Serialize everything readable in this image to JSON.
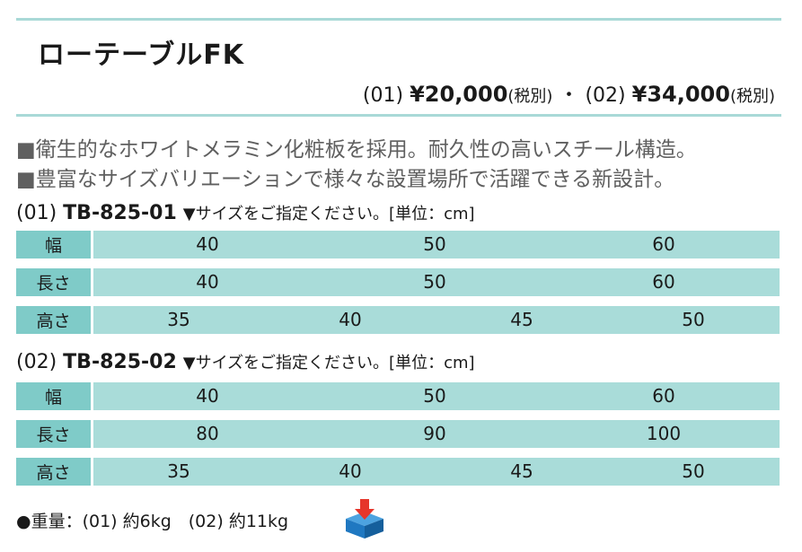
{
  "title": "ローテーブルFK",
  "price": {
    "p1_code": "(01)",
    "p1_amount": "¥20,000",
    "p1_tax": "(税別)",
    "separator": "・",
    "p2_code": "(02)",
    "p2_amount": "¥34,000",
    "p2_tax": "(税別)"
  },
  "features": [
    "■衛生的なホワイトメラミン化粧板を採用。耐久性の高いスチール構造。",
    "■豊富なサイズバリエーションで様々な設置場所で活躍できる新設計。"
  ],
  "models": [
    {
      "prefix": "(01)",
      "code": "TB-825-01",
      "note": "▼サイズをご指定ください。[単位：cm]",
      "rows": [
        {
          "label": "幅",
          "values": [
            "40",
            "50",
            "60"
          ]
        },
        {
          "label": "長さ",
          "values": [
            "40",
            "50",
            "60"
          ]
        },
        {
          "label": "高さ",
          "values": [
            "35",
            "40",
            "45",
            "50"
          ]
        }
      ]
    },
    {
      "prefix": "(02)",
      "code": "TB-825-02",
      "note": "▼サイズをご指定ください。[単位：cm]",
      "rows": [
        {
          "label": "幅",
          "values": [
            "40",
            "50",
            "60"
          ]
        },
        {
          "label": "長さ",
          "values": [
            "80",
            "90",
            "100"
          ]
        },
        {
          "label": "高さ",
          "values": [
            "35",
            "40",
            "45",
            "50"
          ]
        }
      ]
    }
  ],
  "weight": "●重量：(01) 約6kg　(02) 約11kg",
  "icon": "delivery-box-icon",
  "colors": {
    "rule": "#a9d9d7",
    "label_bg": "#7fcbc8",
    "cell_bg": "#a9dcd9",
    "icon_blue": "#1f78c1",
    "icon_red": "#e6352b"
  }
}
